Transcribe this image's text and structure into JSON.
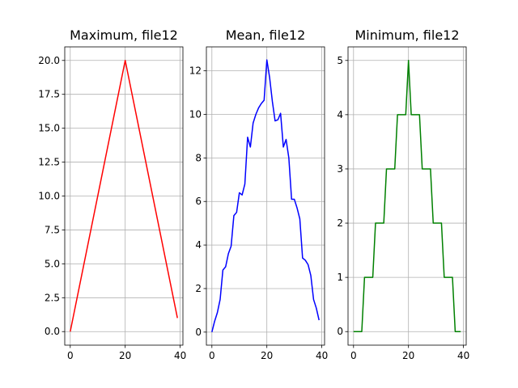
{
  "chart_data": [
    {
      "type": "line",
      "title": "Maximum, file12",
      "color": "#ff0000",
      "step": false,
      "x": [
        0,
        20,
        39
      ],
      "y": [
        0,
        20,
        1
      ],
      "xlim": [
        -2,
        41
      ],
      "ylim": [
        -1,
        21
      ],
      "xticks": [
        0,
        20,
        40
      ],
      "xtick_labels": [
        "0",
        "20",
        "40"
      ],
      "yticks": [
        0,
        2.5,
        5,
        7.5,
        10,
        12.5,
        15,
        17.5,
        20
      ],
      "ytick_labels": [
        "0.0",
        "2.5",
        "5.0",
        "7.5",
        "10.0",
        "12.5",
        "15.0",
        "17.5",
        "20.0"
      ],
      "grid": true
    },
    {
      "type": "line",
      "title": "Mean, file12",
      "color": "#0000ff",
      "step": false,
      "x": [
        0,
        1,
        2,
        3,
        4,
        5,
        6,
        7,
        8,
        9,
        10,
        11,
        12,
        13,
        14,
        15,
        16,
        17,
        18,
        19,
        20,
        21,
        22,
        23,
        24,
        25,
        26,
        27,
        28,
        29,
        30,
        31,
        32,
        33,
        34,
        35,
        36,
        37,
        38,
        39
      ],
      "y": [
        0,
        0.5,
        0.9,
        1.5,
        2.85,
        3.0,
        3.6,
        3.95,
        5.35,
        5.5,
        6.4,
        6.3,
        6.8,
        8.95,
        8.5,
        9.6,
        10.0,
        10.3,
        10.5,
        10.65,
        12.5,
        11.7,
        10.6,
        9.7,
        9.75,
        10.05,
        8.5,
        8.85,
        8.0,
        6.1,
        6.1,
        5.7,
        5.2,
        3.4,
        3.3,
        3.1,
        2.6,
        1.5,
        1.1,
        0.55
      ],
      "xlim": [
        -2,
        41
      ],
      "ylim": [
        -0.6,
        13.1
      ],
      "xticks": [
        0,
        20,
        40
      ],
      "xtick_labels": [
        "0",
        "20",
        "40"
      ],
      "yticks": [
        0,
        2,
        4,
        6,
        8,
        10,
        12
      ],
      "ytick_labels": [
        "0",
        "2",
        "4",
        "6",
        "8",
        "10",
        "12"
      ],
      "grid": true
    },
    {
      "type": "line",
      "title": "Minimum, file12",
      "color": "#008000",
      "step": false,
      "x": [
        0,
        3,
        3,
        4,
        4,
        7,
        7,
        8,
        8,
        11,
        11,
        12,
        12,
        15,
        15,
        16,
        16,
        19,
        20,
        21,
        21,
        24,
        24,
        25,
        25,
        28,
        28,
        29,
        29,
        32,
        32,
        33,
        33,
        36,
        36,
        37,
        37,
        39
      ],
      "y": [
        0,
        0,
        0,
        1,
        1,
        1,
        1,
        2,
        2,
        2,
        2,
        3,
        3,
        3,
        3,
        4,
        4,
        4,
        5,
        4,
        4,
        4,
        4,
        3,
        3,
        3,
        3,
        2,
        2,
        2,
        2,
        1,
        1,
        1,
        1,
        0,
        0,
        0
      ],
      "xlim": [
        -2,
        41
      ],
      "ylim": [
        -0.25,
        5.25
      ],
      "xticks": [
        0,
        20,
        40
      ],
      "xtick_labels": [
        "0",
        "20",
        "40"
      ],
      "yticks": [
        0,
        1,
        2,
        3,
        4,
        5
      ],
      "ytick_labels": [
        "0",
        "1",
        "2",
        "3",
        "4",
        "5"
      ],
      "grid": true
    }
  ]
}
